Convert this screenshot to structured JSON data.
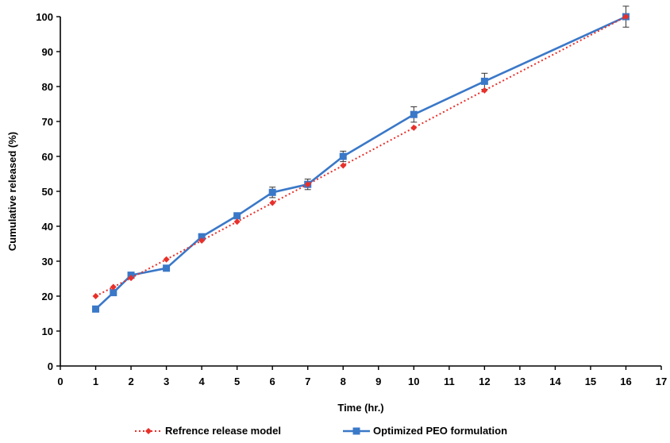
{
  "chart_data": {
    "type": "line",
    "title": "",
    "xlabel": "Time (hr.)",
    "ylabel": "Cumulative released (%)",
    "xlim": [
      0,
      17
    ],
    "ylim": [
      0,
      100
    ],
    "x_ticks": [
      0,
      1,
      2,
      3,
      4,
      5,
      6,
      7,
      8,
      9,
      10,
      11,
      12,
      13,
      14,
      15,
      16,
      17
    ],
    "y_ticks": [
      0,
      10,
      20,
      30,
      40,
      50,
      60,
      70,
      80,
      90,
      100
    ],
    "grid": false,
    "legend_position": "bottom",
    "series": [
      {
        "name": "Refrence release model",
        "color": "#e8302a",
        "line_style": "dotted",
        "marker": "diamond",
        "x": [
          1,
          1.5,
          2,
          3,
          4,
          5,
          6,
          7,
          8,
          10,
          12,
          16
        ],
        "y": [
          20.0,
          22.6,
          25.2,
          30.5,
          35.9,
          41.3,
          46.7,
          52.0,
          57.4,
          68.2,
          78.9,
          100.0
        ]
      },
      {
        "name": "Optimized PEO formulation",
        "color": "#3a78c8",
        "line_style": "solid",
        "marker": "square",
        "x": [
          1,
          1.5,
          2,
          3,
          4,
          5,
          6,
          7,
          8,
          10,
          12,
          16
        ],
        "y": [
          16.3,
          21.0,
          26.0,
          28.0,
          37.0,
          43.0,
          49.7,
          52.0,
          60.0,
          72.0,
          81.5,
          100.0
        ],
        "error": [
          0.6,
          0.6,
          0.6,
          0.6,
          0.8,
          0.8,
          1.5,
          1.5,
          1.5,
          2.2,
          2.3,
          3.0
        ]
      }
    ]
  }
}
